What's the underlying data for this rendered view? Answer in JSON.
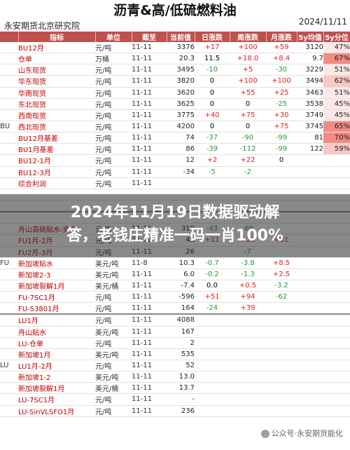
{
  "header": {
    "title": "沥青&高/低硫燃料油",
    "company": "永安期货北京研究院",
    "date": "2024/11/11"
  },
  "columns": [
    "指标",
    "单位",
    "截至",
    "当前值",
    "日涨跌",
    "周涨跌",
    "月涨跌",
    "5y均值",
    "5y分位"
  ],
  "colors": {
    "header_bg": "#c0504d",
    "rise": "#e02020",
    "fall": "#1f9a3a"
  },
  "groups": [
    {
      "label": "BU",
      "rows": [
        {
          "name": "BU12月",
          "unit": "元/吨",
          "date": "11-11",
          "value": "3376",
          "d": "+17",
          "w": "+100",
          "m": "+59",
          "avg": "3120",
          "pct": "47%",
          "pctv": 47
        },
        {
          "name": "仓单",
          "unit": "万桶",
          "date": "11-11",
          "value": "20.3",
          "d": "11.5",
          "w": "+18.0",
          "m": "+8.4",
          "avg": "9.7",
          "pct": "67%",
          "pctv": 67
        },
        {
          "name": "山东现货",
          "unit": "元/吨",
          "date": "11-11",
          "value": "3495",
          "d": "-10",
          "w": "+5",
          "m": "-30",
          "avg": "3229",
          "pct": "51%",
          "pctv": 51
        },
        {
          "name": "华东现货",
          "unit": "元/吨",
          "date": "11-11",
          "value": "3820",
          "d": "0",
          "w": "+100",
          "m": "+100",
          "avg": "3494",
          "pct": "62%",
          "pctv": 62
        },
        {
          "name": "华南现货",
          "unit": "元/吨",
          "date": "11-11",
          "value": "3620",
          "d": "0",
          "w": "+55",
          "m": "+25",
          "avg": "3463",
          "pct": "51%",
          "pctv": 51
        },
        {
          "name": "东北现货",
          "unit": "元/吨",
          "date": "11-11",
          "value": "3625",
          "d": "0",
          "w": "0",
          "m": "-25",
          "avg": "3538",
          "pct": "45%",
          "pctv": 45
        },
        {
          "name": "西南现货",
          "unit": "元/吨",
          "date": "11-11",
          "value": "3775",
          "d": "+40",
          "w": "+75",
          "m": "+30",
          "avg": "3749",
          "pct": "45%",
          "pctv": 45
        },
        {
          "name": "西北现货",
          "unit": "元/吨",
          "date": "11-11",
          "value": "4200",
          "d": "0",
          "w": "0",
          "m": "+75",
          "avg": "3745",
          "pct": "65%",
          "pctv": 65
        },
        {
          "name": "BU12月基差",
          "unit": "元/吨",
          "date": "11-11",
          "value": "74",
          "d": "-37",
          "w": "-90",
          "m": "-99",
          "avg": "81",
          "pct": "70%",
          "pctv": 70
        },
        {
          "name": "BU1月基差",
          "unit": "元/吨",
          "date": "11-11",
          "value": "86",
          "d": "-39",
          "w": "-112",
          "m": "-99",
          "avg": "122",
          "pct": "59%",
          "pctv": 59
        },
        {
          "name": "BU12-1月",
          "unit": "元/吨",
          "date": "11-11",
          "value": "12",
          "d": "+2",
          "w": "+22",
          "m": "0",
          "avg": "",
          "pct": "",
          "pctv": null
        },
        {
          "name": "BU12-3月",
          "unit": "元/吨",
          "date": "11-11",
          "value": "-34",
          "d": "-5",
          "w": "-2",
          "m": "",
          "avg": "",
          "pct": "",
          "pctv": null
        },
        {
          "name": "综合利润",
          "unit": "元/吨",
          "date": "11-11",
          "value": "",
          "d": "",
          "w": "",
          "m": "",
          "avg": "",
          "pct": "",
          "pctv": null
        },
        {
          "name": "",
          "unit": "",
          "date": "",
          "value": "",
          "d": "",
          "w": "",
          "m": "",
          "avg": "",
          "pct": "",
          "pctv": null
        },
        {
          "name": "",
          "unit": "",
          "date": "",
          "value": "",
          "d": "",
          "w": "",
          "m": "",
          "avg": "",
          "pct": "",
          "pctv": null
        }
      ]
    },
    {
      "label": "FU",
      "rows": [
        {
          "name": "",
          "unit": "",
          "date": "",
          "value": "",
          "d": "",
          "w": "",
          "m": "",
          "avg": "",
          "pct": "",
          "pctv": null
        },
        {
          "name": "舟山高硫贴水:卖方",
          "unit": "元/吨",
          "date": "11-11",
          "value": "319",
          "d": "-43",
          "w": "-69",
          "m": "",
          "avg": "",
          "pct": "",
          "pctv": null
        },
        {
          "name": "FU1月-2月",
          "unit": "元/吨",
          "date": "11-11",
          "value": "42",
          "d": "+11",
          "w": "+28",
          "m": "+31",
          "avg": "",
          "pct": "",
          "pctv": null
        },
        {
          "name": "FU2月-3月",
          "unit": "元/吨",
          "date": "11-11",
          "value": "26",
          "d": "",
          "w": "-7",
          "m": "",
          "avg": "",
          "pct": "",
          "pctv": null
        },
        {
          "name": "新加坡贴水",
          "unit": "美元/吨",
          "date": "11-8",
          "value": "10.3",
          "d": "-0.7",
          "w": "-3.8",
          "m": "+8.5",
          "avg": "",
          "pct": "",
          "pctv": null
        },
        {
          "name": "新加坡2-3",
          "unit": "美元/吨",
          "date": "11-11",
          "value": "6.0",
          "d": "-0.2",
          "w": "-1.3",
          "m": "+2.5",
          "avg": "",
          "pct": "",
          "pctv": null
        },
        {
          "name": "新加坡裂解1月",
          "unit": "美元/桶",
          "date": "11-11",
          "value": "-7.4",
          "d": "0.0",
          "w": "+0.5",
          "m": "-3.2",
          "avg": "",
          "pct": "",
          "pctv": null
        },
        {
          "name": "FU-7SC1月",
          "unit": "元/吨",
          "date": "11-11",
          "value": "-596",
          "d": "+51",
          "w": "+94",
          "m": "-62",
          "avg": "",
          "pct": "",
          "pctv": null
        },
        {
          "name": "FU-S3801月",
          "unit": "元/吨",
          "date": "11-11",
          "value": "164",
          "d": "-24",
          "w": "+39",
          "m": "",
          "avg": "",
          "pct": "",
          "pctv": null
        }
      ]
    },
    {
      "label": "LU",
      "rows": [
        {
          "name": "LU1月",
          "unit": "元/吨",
          "date": "11-11",
          "value": "4088",
          "d": "",
          "w": "",
          "m": "",
          "avg": "",
          "pct": "",
          "pctv": null
        },
        {
          "name": "舟山贴水",
          "unit": "美元/吨",
          "date": "11-11",
          "value": "167",
          "d": "",
          "w": "",
          "m": "",
          "avg": "",
          "pct": "",
          "pctv": null
        },
        {
          "name": "LU-仓单",
          "unit": "元/吨",
          "date": "11-11",
          "value": "2",
          "d": "",
          "w": "",
          "m": "",
          "avg": "",
          "pct": "",
          "pctv": null
        },
        {
          "name": "新加坡1月",
          "unit": "美元/吨",
          "date": "11-11",
          "value": "535",
          "d": "",
          "w": "",
          "m": "",
          "avg": "",
          "pct": "",
          "pctv": null
        },
        {
          "name": "LU1月-2月",
          "unit": "元/吨",
          "date": "11-11",
          "value": "52",
          "d": "",
          "w": "",
          "m": "",
          "avg": "",
          "pct": "",
          "pctv": null
        },
        {
          "name": "新加坡1-2",
          "unit": "美元/吨",
          "date": "11-11",
          "value": "13.0",
          "d": "",
          "w": "",
          "m": "",
          "avg": "",
          "pct": "",
          "pctv": null
        },
        {
          "name": "新加坡裂解1月",
          "unit": "美元/桶",
          "date": "11-11",
          "value": "13.7",
          "d": "",
          "w": "",
          "m": "",
          "avg": "",
          "pct": "",
          "pctv": null
        },
        {
          "name": "LU-7SC1月",
          "unit": "元/吨",
          "date": "11-11",
          "value": "-",
          "d": "",
          "w": "",
          "m": "",
          "avg": "",
          "pct": "",
          "pctv": null
        },
        {
          "name": "LU-SinVLSFO1月",
          "unit": "元/吨",
          "date": "11-11",
          "value": "236",
          "d": "",
          "w": "",
          "m": "",
          "avg": "",
          "pct": "",
          "pctv": null
        }
      ]
    }
  ],
  "banner": {
    "line1": "2024年11月19日数据驱动解",
    "line2": "答，老钱庄精准一码一肖100%"
  },
  "watermark": "公众号·永安期货能化"
}
